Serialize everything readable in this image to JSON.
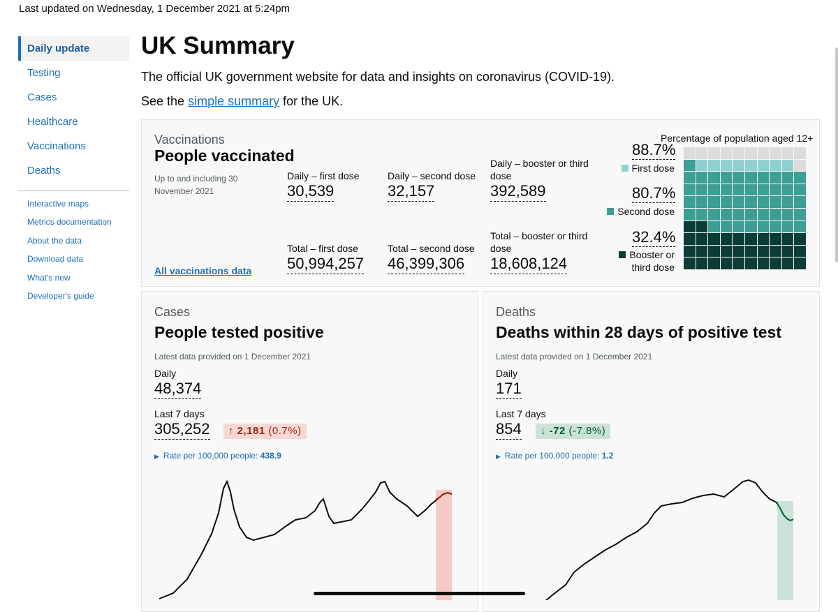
{
  "last_updated": "Last updated on Wednesday, 1 December 2021 at 5:24pm",
  "sidebar": {
    "items": [
      {
        "label": "Daily update",
        "active": true
      },
      {
        "label": "Testing"
      },
      {
        "label": "Cases"
      },
      {
        "label": "Healthcare"
      },
      {
        "label": "Vaccinations"
      },
      {
        "label": "Deaths"
      }
    ],
    "links": [
      "Interactive maps",
      "Metrics documentation",
      "About the data",
      "Download data",
      "What's new",
      "Developer's guide"
    ]
  },
  "page": {
    "title": "UK Summary",
    "lead": "The official UK government website for data and insights on coronavirus (COVID-19).",
    "see_prefix": "See the",
    "see_link": "simple summary",
    "see_suffix": "for the UK."
  },
  "vaccinations": {
    "category": "Vaccinations",
    "heading": "People vaccinated",
    "note": "Up to and including 30 November 2021",
    "link": "All vaccinations data",
    "daily_first_label": "Daily – first dose",
    "daily_first_value": "30,539",
    "daily_second_label": "Daily – second dose",
    "daily_second_value": "32,157",
    "daily_booster_label": "Daily – booster or third dose",
    "daily_booster_value": "392,589",
    "total_first_label": "Total – first dose",
    "total_first_value": "50,994,257",
    "total_second_label": "Total – second dose",
    "total_second_value": "46,399,306",
    "total_booster_label": "Total – booster or third dose",
    "total_booster_value": "18,608,124",
    "waffle_title": "Percentage of population aged 12+",
    "first_pct": "88.7%",
    "first_label": "First dose",
    "second_pct": "80.7%",
    "second_label": "Second dose",
    "booster_pct": "32.4%",
    "booster_label": "Booster or third dose",
    "first_fraction": 0.887,
    "second_fraction": 0.807,
    "booster_fraction": 0.324,
    "colors": {
      "first": "#8fd1d0",
      "second": "#3d9e94",
      "booster": "#0c3c36",
      "empty": "#dcdcdc"
    }
  },
  "cases": {
    "category": "Cases",
    "heading": "People tested positive",
    "latest": "Latest data provided on 1 December 2021",
    "daily_label": "Daily",
    "daily_value": "48,374",
    "week_label": "Last 7 days",
    "week_value": "305,252",
    "change_arrow": "↑",
    "change_value": "2,181",
    "change_pct": "(0.7%)",
    "rate_label": "Rate per 100,000 people:",
    "rate_value": "438.9",
    "colors": {
      "badge_bg": "#f6d7d2",
      "badge_text": "#942514",
      "highlight": "#f4cbc4",
      "line": "#0b0c0c",
      "recent_line": "#942514"
    }
  },
  "deaths": {
    "category": "Deaths",
    "heading": "Deaths within 28 days of positive test",
    "latest": "Latest data provided on 1 December 2021",
    "daily_label": "Daily",
    "daily_value": "171",
    "week_label": "Last 7 days",
    "week_value": "854",
    "change_arrow": "↓",
    "change_value": "-72",
    "change_pct": "(-7.8%)",
    "rate_label": "Rate per 100,000 people:",
    "rate_value": "1.2",
    "colors": {
      "badge_bg": "#cce2d8",
      "badge_text": "#005a30",
      "highlight": "#cce2d8",
      "line": "#0b0c0c",
      "recent_line": "#00703c"
    }
  }
}
